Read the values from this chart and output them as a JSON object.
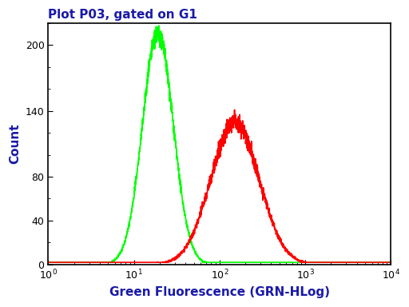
{
  "title": "Plot P03, gated on G1",
  "xlabel": "Green Fluorescence (GRN-HLog)",
  "ylabel": "Count",
  "xlim": [
    1.0,
    10000.0
  ],
  "ylim": [
    0,
    220
  ],
  "yticks": [
    0,
    40,
    80,
    140,
    200
  ],
  "green_peak_log": 1.28,
  "green_sigma": 0.18,
  "green_amplitude": 210,
  "red_peak_log": 2.18,
  "red_sigma": 0.28,
  "red_amplitude": 130,
  "green_color": "#00FF00",
  "red_color": "#FF0000",
  "title_color": "#1a1aaa",
  "xlabel_color": "#1a1aaa",
  "ylabel_color": "#1a1aaa",
  "tick_label_color": "#000000",
  "spine_color": "#000000",
  "background_color": "#ffffff",
  "line_width": 1.2,
  "noise_seed_green": 42,
  "noise_seed_red": 99,
  "noise_amplitude": 4.0,
  "baseline": 2.0
}
